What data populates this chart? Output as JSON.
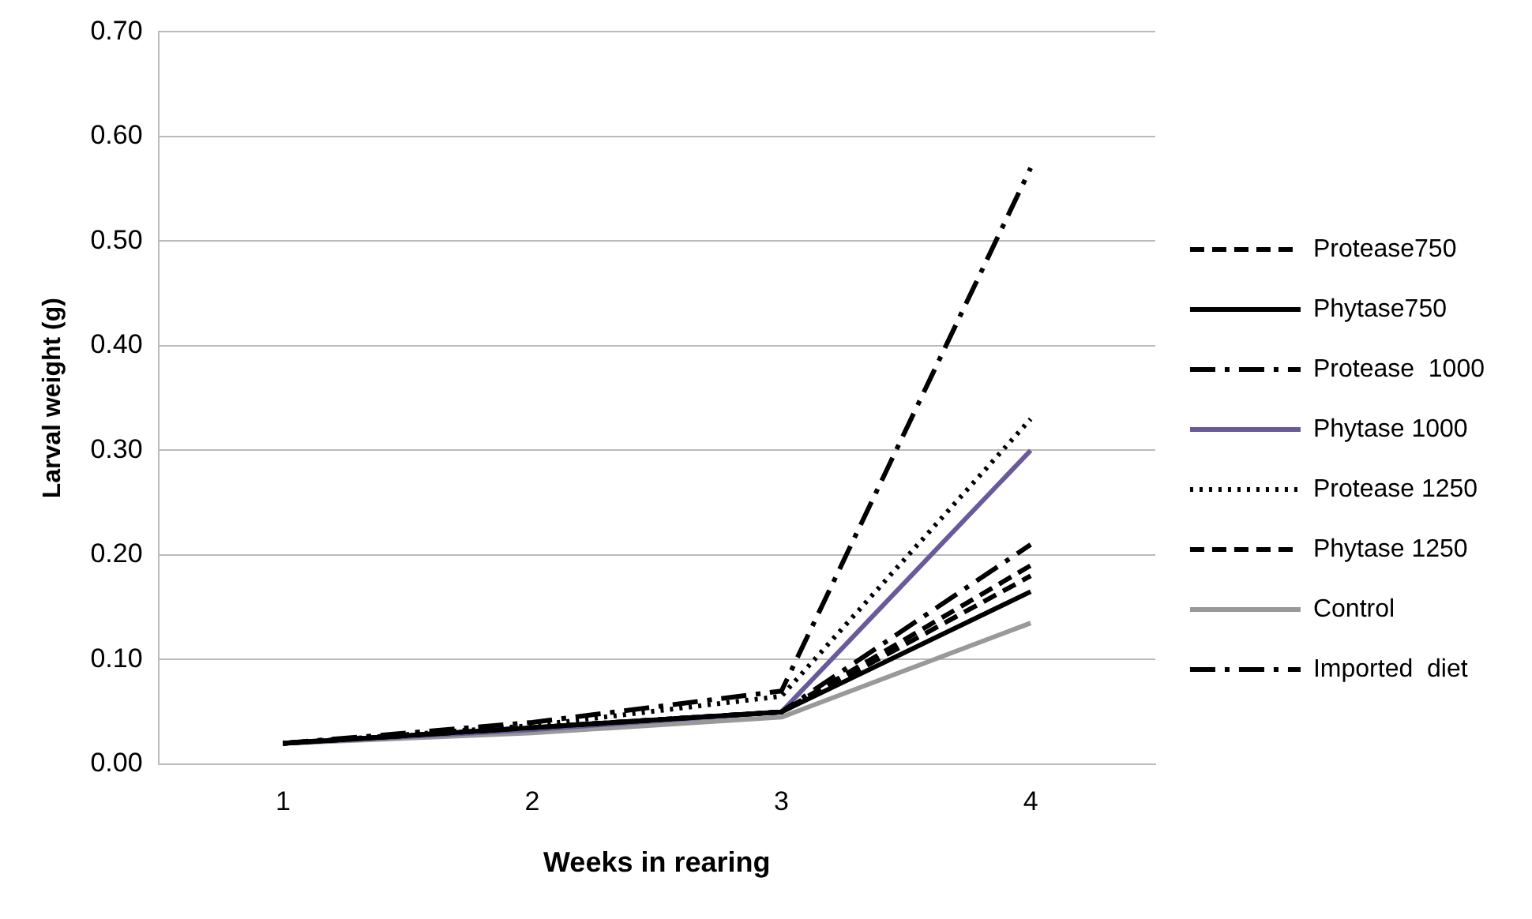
{
  "chart_data": {
    "type": "line",
    "xlabel": "Weeks in rearing",
    "ylabel": "Larval weight (g)",
    "categories": [
      "1",
      "2",
      "3",
      "4"
    ],
    "series": [
      {
        "name": "Protease750",
        "color": "#000000",
        "line_style": "dashed",
        "values": [
          0.02,
          0.035,
          0.05,
          0.18
        ]
      },
      {
        "name": "Phytase750",
        "color": "#000000",
        "line_style": "solid",
        "values": [
          0.02,
          0.035,
          0.05,
          0.165
        ]
      },
      {
        "name": "Protease  1000",
        "color": "#000000",
        "line_style": "dashdot",
        "values": [
          0.02,
          0.035,
          0.05,
          0.21
        ]
      },
      {
        "name": "Phytase 1000",
        "color": "#6a5a9a",
        "line_style": "solid",
        "values": [
          0.02,
          0.033,
          0.05,
          0.3
        ]
      },
      {
        "name": "Protease 1250",
        "color": "#000000",
        "line_style": "dotted",
        "values": [
          0.02,
          0.037,
          0.065,
          0.33
        ]
      },
      {
        "name": "Phytase 1250",
        "color": "#000000",
        "line_style": "dashed",
        "values": [
          0.02,
          0.035,
          0.05,
          0.19
        ]
      },
      {
        "name": "Control",
        "color": "#999999",
        "line_style": "solid",
        "values": [
          0.02,
          0.03,
          0.045,
          0.135
        ]
      },
      {
        "name": "Imported  diet",
        "color": "#000000",
        "line_style": "dashdot",
        "values": [
          0.02,
          0.04,
          0.07,
          0.57
        ]
      }
    ],
    "ylim": [
      0,
      0.7
    ],
    "yticks": [
      {
        "value": 0,
        "label": "0.00"
      },
      {
        "value": 0.1,
        "label": "0.10"
      },
      {
        "value": 0.2,
        "label": "0.20"
      },
      {
        "value": 0.3,
        "label": "0.30"
      },
      {
        "value": 0.4,
        "label": "0.40"
      },
      {
        "value": 0.5,
        "label": "0.50"
      },
      {
        "value": 0.6,
        "label": "0.60"
      },
      {
        "value": 0.7,
        "label": "0.70"
      }
    ],
    "grid": "y",
    "legend": "right",
    "marker": "none"
  }
}
